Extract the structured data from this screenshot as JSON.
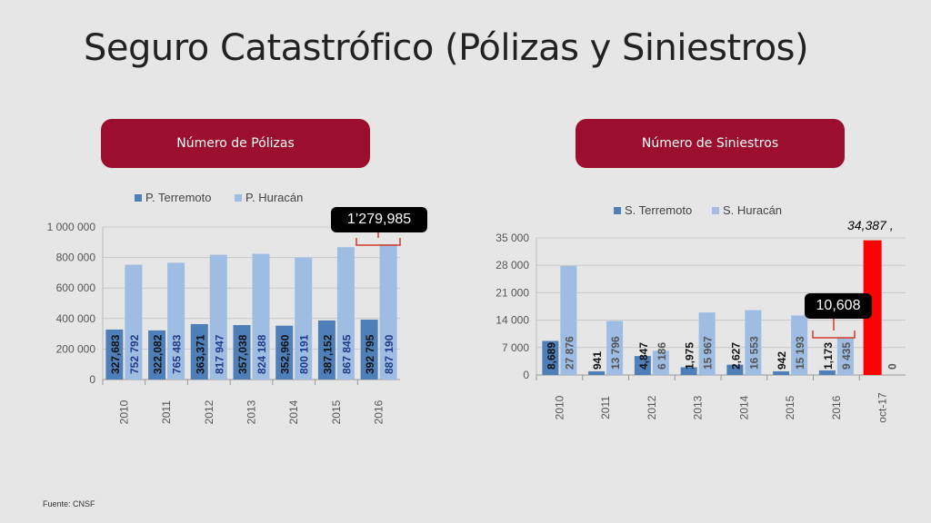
{
  "page": {
    "title": "Seguro Catastrófico (Pólizas y Siniestros)",
    "left_header": "Número de Pólizas",
    "right_header": "Número de Siniestros",
    "source": "Fuente: CNSF",
    "callout_left": "1’279,985",
    "callout_right": "10,608",
    "oct_total_label": "34,387 ,"
  },
  "colors": {
    "terremoto": "#4f7fb8",
    "huracan": "#9fbde2",
    "highlight": "#ff0000",
    "header_bg": "#9b0e2e",
    "bracket": "#d43a2a"
  },
  "chart_data": [
    {
      "type": "bar",
      "categories": [
        "2010",
        "2011",
        "2012",
        "2013",
        "2014",
        "2015",
        "2016"
      ],
      "series": [
        {
          "name": "P. Terremoto",
          "values": [
            327683,
            322082,
            363371,
            357038,
            352960,
            387152,
            392795
          ],
          "labels": [
            "327,683",
            "322,082",
            "363,371",
            "357,038",
            "352,960",
            "387,152",
            "392 795"
          ]
        },
        {
          "name": "P. Huracán",
          "values": [
            752792,
            765483,
            817947,
            824188,
            800191,
            867845,
            887190
          ],
          "labels": [
            "752 792",
            "765 483",
            "817 947",
            "824 188",
            "800 191",
            "867 845",
            "887 190"
          ]
        }
      ],
      "ylim": [
        0,
        1000000
      ],
      "yticks": [
        0,
        200000,
        400000,
        600000,
        800000,
        1000000
      ],
      "ytick_labels": [
        "0",
        "200 000",
        "400 000",
        "600 000",
        "800 000",
        "1 000 000"
      ],
      "legend": "top",
      "grid": true
    },
    {
      "type": "bar",
      "categories": [
        "2010",
        "2011",
        "2012",
        "2013",
        "2014",
        "2015",
        "2016",
        "oct-17"
      ],
      "series": [
        {
          "name": "S. Terremoto",
          "values": [
            8689,
            941,
            4847,
            1975,
            2627,
            942,
            1173,
            34387
          ],
          "labels": [
            "8,689",
            "941",
            "4,847",
            "1,975",
            "2,627",
            "942",
            "1,173",
            ""
          ]
        },
        {
          "name": "S. Huracán",
          "values": [
            27876,
            13796,
            6186,
            15967,
            16553,
            15193,
            9435,
            0
          ],
          "labels": [
            "27 876",
            "13 796",
            "6 186",
            "15 967",
            "16 553",
            "15 193",
            "9 435",
            "0"
          ]
        }
      ],
      "ylim": [
        0,
        35000
      ],
      "yticks": [
        0,
        7000,
        14000,
        21000,
        28000,
        35000
      ],
      "ytick_labels": [
        "0",
        "7 000",
        "14 000",
        "21 000",
        "28 000",
        "35 000"
      ],
      "legend": "top",
      "grid": true
    }
  ]
}
